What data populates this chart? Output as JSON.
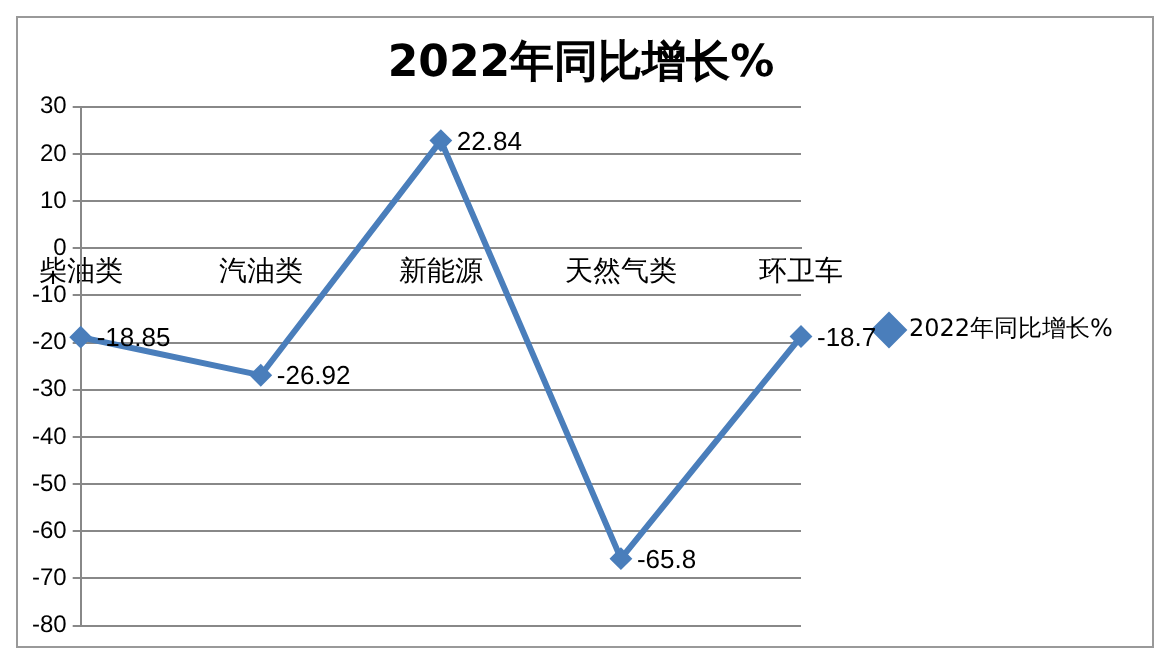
{
  "chart_data": {
    "type": "line",
    "title": "2022年同比增长%",
    "categories": [
      "柴油类",
      "汽油类",
      "新能源",
      "天然气类",
      "环卫车"
    ],
    "series": [
      {
        "name": "2022年同比增长%",
        "color": "#4a7ebb",
        "values": [
          -18.85,
          -26.92,
          22.84,
          -65.8,
          -18.7
        ]
      }
    ],
    "ylim": [
      -80,
      30
    ],
    "yticks": [
      -80,
      -70,
      -60,
      -50,
      -40,
      -30,
      -20,
      -10,
      0,
      10,
      20,
      30
    ],
    "grid": "y",
    "legend": "right",
    "marker": "diamond",
    "line_style": "solid",
    "data_labels": true
  }
}
